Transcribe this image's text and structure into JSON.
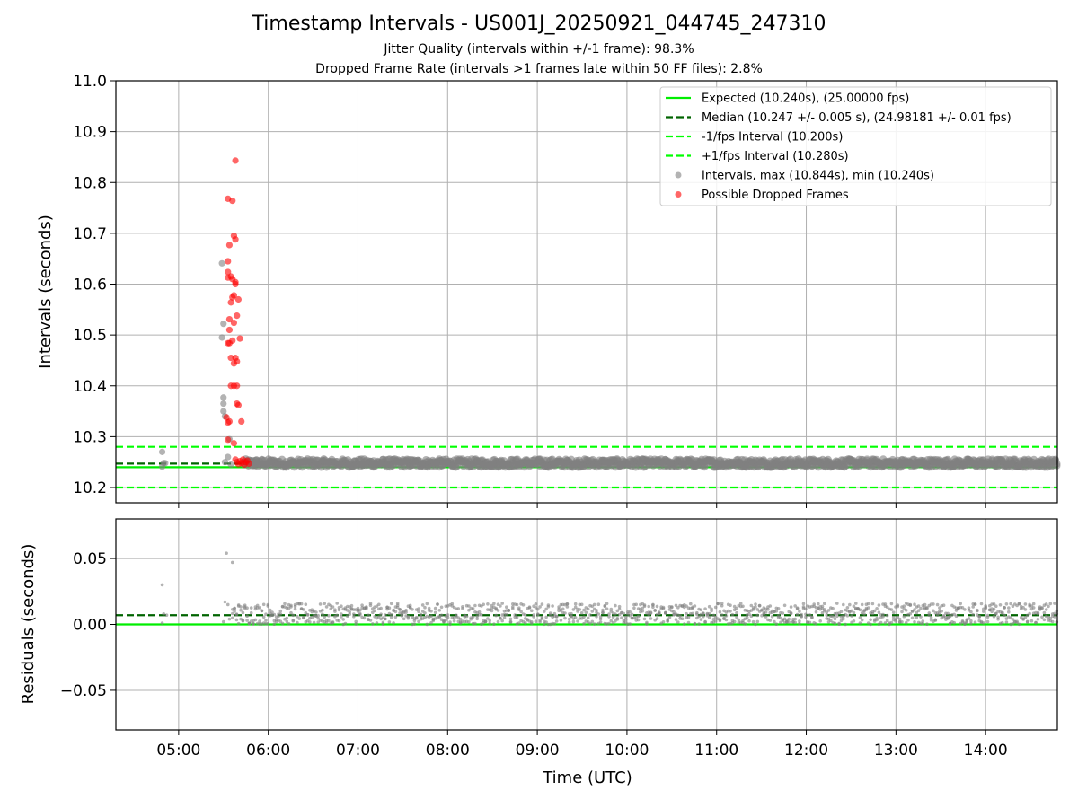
{
  "figure": {
    "title": "Timestamp Intervals - US001J_20250921_044745_247310",
    "subtitle_jitter": "Jitter Quality (intervals within +/-1 frame): 98.3%",
    "subtitle_dropped": "Dropped Frame Rate (intervals >1 frames late within 50 FF files): 2.8%",
    "x_label": "Time (UTC)"
  },
  "colors": {
    "expected": "#00ee00",
    "median": "#006400",
    "fps_bounds": "#00ff00",
    "intervals": "#808080",
    "dropped": "#ff0000"
  },
  "chart_data": [
    {
      "type": "scatter",
      "panel": "top",
      "ylabel": "Intervals (seconds)",
      "ylim": [
        10.17,
        11.0
      ],
      "xlim": [
        "04:18",
        "14:48"
      ],
      "x_ticks": [
        "05:00",
        "06:00",
        "07:00",
        "08:00",
        "09:00",
        "10:00",
        "11:00",
        "12:00",
        "13:00",
        "14:00"
      ],
      "y_ticks": [
        10.2,
        10.3,
        10.4,
        10.5,
        10.6,
        10.7,
        10.8,
        10.9,
        11.0
      ],
      "y_tick_labels": [
        "10.2",
        "10.3",
        "10.4",
        "10.5",
        "10.6",
        "10.7",
        "10.8",
        "10.9",
        "11.0"
      ],
      "grid": true,
      "legend_position": "upper-right",
      "legend": [
        {
          "label": "Expected (10.240s), (25.00000 fps)",
          "kind": "solid-line",
          "color": "#00ee00"
        },
        {
          "label": "Median (10.247 +/- 0.005 s), (24.98181 +/- 0.01 fps)",
          "kind": "dashed-line",
          "color": "#006400"
        },
        {
          "label": "-1/fps Interval (10.200s)",
          "kind": "dashed-line",
          "color": "#00ff00"
        },
        {
          "label": "+1/fps Interval (10.280s)",
          "kind": "dashed-line",
          "color": "#00ff00"
        },
        {
          "label": "Intervals, max (10.844s), min (10.240s)",
          "kind": "marker",
          "color": "#808080"
        },
        {
          "label": "Possible Dropped Frames",
          "kind": "marker",
          "color": "#ff0000"
        }
      ],
      "reference_lines": [
        {
          "name": "Expected",
          "y": 10.24,
          "style": "solid",
          "color": "#00ee00"
        },
        {
          "name": "Median",
          "y": 10.247,
          "style": "dashed",
          "color": "#006400"
        },
        {
          "name": "-1/fps Interval",
          "y": 10.2,
          "style": "dashed",
          "color": "#00ff00"
        },
        {
          "name": "+1/fps Interval",
          "y": 10.28,
          "style": "dashed",
          "color": "#00ff00"
        }
      ],
      "series": [
        {
          "name": "Intervals",
          "color": "#808080",
          "points": [
            [
              "04:49",
              10.241
            ],
            [
              "04:49",
              10.27
            ],
            [
              "04:50",
              10.248
            ],
            [
              "04:51",
              10.248
            ],
            [
              "05:29",
              10.641
            ],
            [
              "05:29",
              10.495
            ],
            [
              "05:30",
              10.522
            ],
            [
              "05:30",
              10.377
            ],
            [
              "05:30",
              10.365
            ],
            [
              "05:30",
              10.35
            ],
            [
              "05:31",
              10.34
            ],
            [
              "05:31",
              10.25
            ],
            [
              "05:33",
              10.26
            ],
            [
              "05:34",
              10.295
            ],
            [
              "05:35",
              10.245
            ]
          ],
          "dense_band": {
            "from": "05:44",
            "to": "14:48",
            "y_min": 10.24,
            "y_max": 10.256
          }
        },
        {
          "name": "Possible Dropped Frames",
          "color": "#ff0000",
          "points": [
            [
              "05:38",
              10.843
            ],
            [
              "05:33",
              10.768
            ],
            [
              "05:36",
              10.764
            ],
            [
              "05:37",
              10.695
            ],
            [
              "05:38",
              10.688
            ],
            [
              "05:34",
              10.677
            ],
            [
              "05:33",
              10.645
            ],
            [
              "05:33",
              10.624
            ],
            [
              "05:35",
              10.615
            ],
            [
              "05:36",
              10.61
            ],
            [
              "05:38",
              10.604
            ],
            [
              "05:38",
              10.6
            ],
            [
              "05:33",
              10.613
            ],
            [
              "05:37",
              10.578
            ],
            [
              "05:36",
              10.574
            ],
            [
              "05:40",
              10.57
            ],
            [
              "05:35",
              10.564
            ],
            [
              "05:39",
              10.538
            ],
            [
              "05:34",
              10.531
            ],
            [
              "05:37",
              10.524
            ],
            [
              "05:34",
              10.51
            ],
            [
              "05:41",
              10.493
            ],
            [
              "05:36",
              10.489
            ],
            [
              "05:33",
              10.484
            ],
            [
              "05:34",
              10.484
            ],
            [
              "05:35",
              10.455
            ],
            [
              "05:38",
              10.455
            ],
            [
              "05:39",
              10.448
            ],
            [
              "05:37",
              10.444
            ],
            [
              "05:35",
              10.4
            ],
            [
              "05:37",
              10.4
            ],
            [
              "05:39",
              10.4
            ],
            [
              "05:39",
              10.365
            ],
            [
              "05:40",
              10.362
            ],
            [
              "05:32",
              10.338
            ],
            [
              "05:33",
              10.328
            ],
            [
              "05:34",
              10.33
            ],
            [
              "05:42",
              10.33
            ],
            [
              "05:33",
              10.294
            ],
            [
              "05:37",
              10.287
            ],
            [
              "05:38",
              10.255
            ],
            [
              "05:39",
              10.25
            ],
            [
              "05:40",
              10.246
            ],
            [
              "05:41",
              10.252
            ],
            [
              "05:42",
              10.248
            ],
            [
              "05:43",
              10.255
            ],
            [
              "05:44",
              10.245
            ],
            [
              "05:45",
              10.25
            ],
            [
              "05:46",
              10.253
            ],
            [
              "05:47",
              10.247
            ]
          ]
        }
      ]
    },
    {
      "type": "scatter",
      "panel": "bottom",
      "ylabel": "Residuals (seconds)",
      "ylim": [
        -0.08,
        0.08
      ],
      "xlim": [
        "04:18",
        "14:48"
      ],
      "x_ticks": [
        "05:00",
        "06:00",
        "07:00",
        "08:00",
        "09:00",
        "10:00",
        "11:00",
        "12:00",
        "13:00",
        "14:00"
      ],
      "y_ticks": [
        -0.05,
        0.0,
        0.05
      ],
      "y_tick_labels": [
        "−0.05",
        "0.00",
        "0.05"
      ],
      "grid": true,
      "reference_lines": [
        {
          "name": "Zero",
          "y": 0.0,
          "style": "solid",
          "color": "#00ee00"
        },
        {
          "name": "Median residual",
          "y": 0.007,
          "style": "dashed",
          "color": "#006400"
        }
      ],
      "series": [
        {
          "name": "Residuals",
          "color": "#808080",
          "points": [
            [
              "04:49",
              0.03
            ],
            [
              "04:49",
              0.001
            ],
            [
              "04:50",
              0.008
            ],
            [
              "04:52",
              0.007
            ],
            [
              "05:30",
              0.002
            ],
            [
              "05:32",
              0.054
            ],
            [
              "05:36",
              0.047
            ],
            [
              "05:31",
              0.017
            ],
            [
              "05:33",
              0.015
            ],
            [
              "05:34",
              0.004
            ]
          ],
          "dense_band": {
            "from": "05:36",
            "to": "14:48",
            "y_min": 0.0,
            "y_max": 0.016
          }
        }
      ]
    }
  ]
}
